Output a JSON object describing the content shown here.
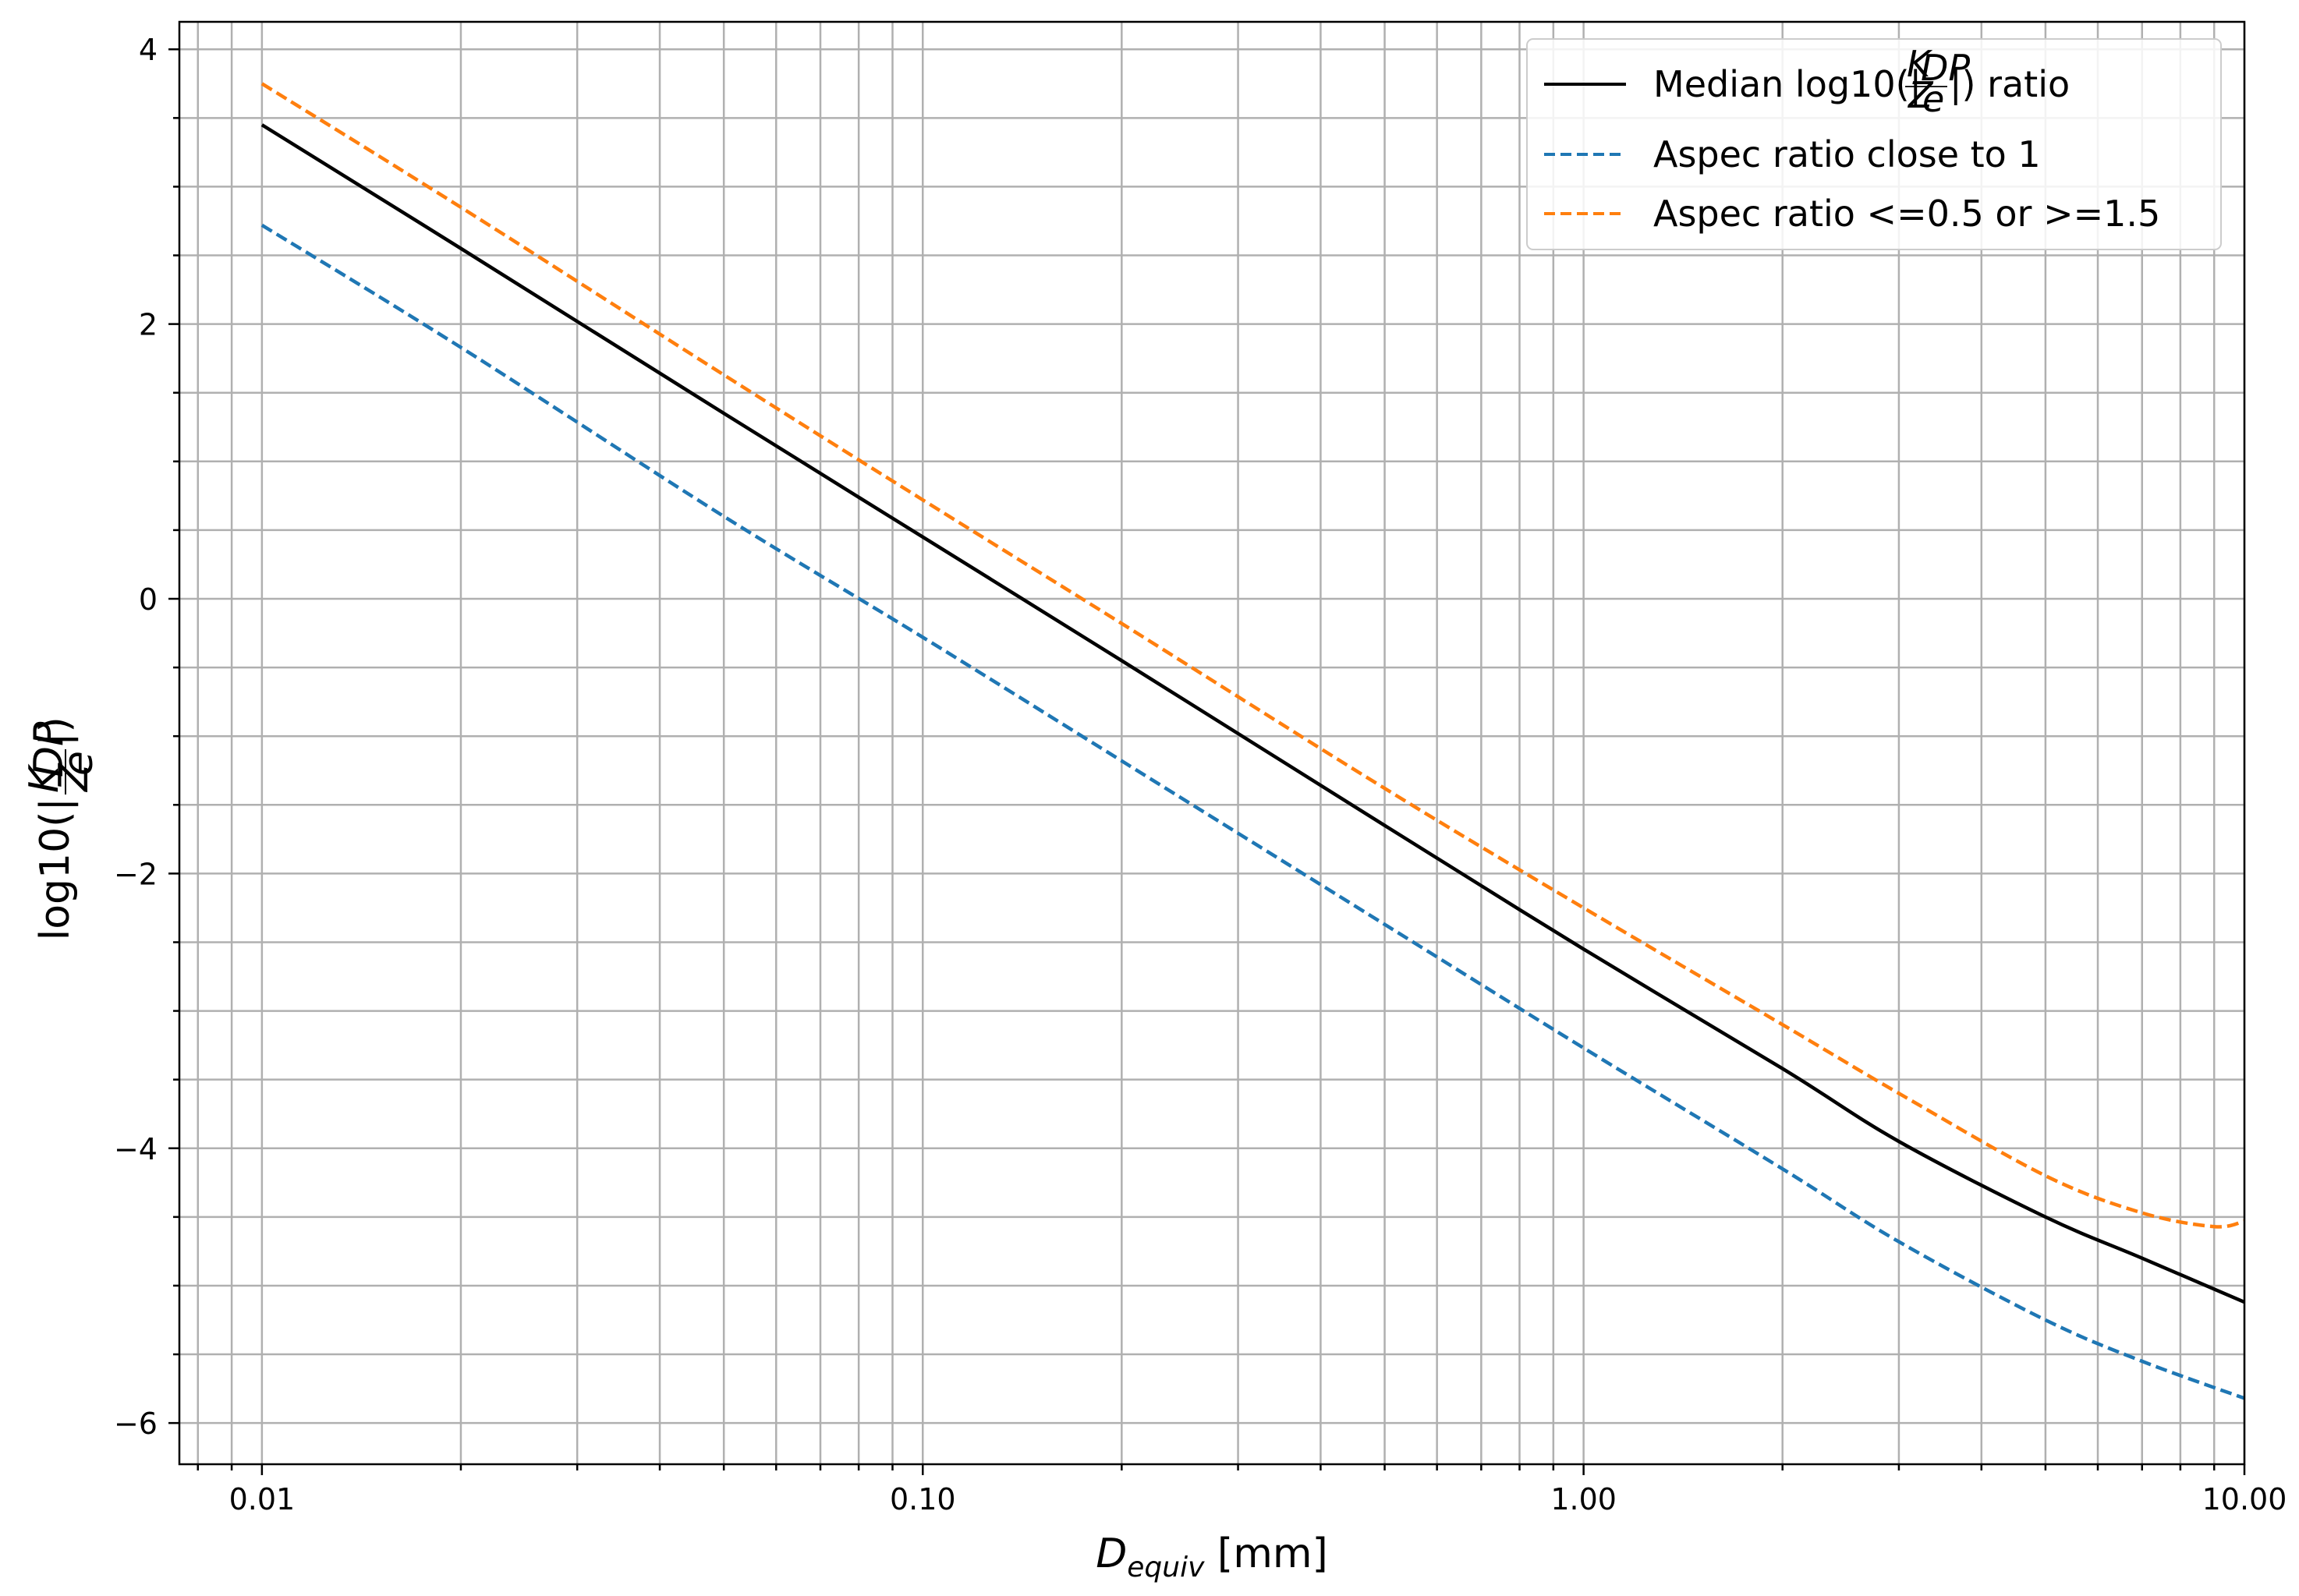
{
  "chart_data": {
    "type": "line",
    "xscale": "log",
    "xlim": [
      0.0075,
      10.0
    ],
    "ylim": [
      -6.3,
      4.2
    ],
    "xticks": [
      0.01,
      0.1,
      1.0,
      10.0
    ],
    "xtick_labels": [
      "0.01",
      "0.10",
      "1.00",
      "10.00"
    ],
    "yticks": [
      4,
      2,
      0,
      -2,
      -4,
      -6
    ],
    "ytick_labels": [
      "4",
      "2",
      "0",
      "−2",
      "−4",
      "−6"
    ],
    "yminor_step": 0.5,
    "grid": true,
    "xlabel": {
      "main": "D",
      "sub": "equiv",
      "unit": " [mm]"
    },
    "ylabel": {
      "prefix": "log10(|",
      "num": "K",
      "num_sub": "DP",
      "den": "Z",
      "den_sub": "e",
      "suffix": "|)"
    },
    "legend_placement": "top-right",
    "series": [
      {
        "name": {
          "prefix": "Median log10(|",
          "num": "K",
          "num_sub": "DP",
          "den": "Z",
          "den_sub": "e",
          "suffix": "|) ratio"
        },
        "color": "#000000",
        "dash": "solid",
        "x": [
          0.01,
          0.02,
          0.05,
          0.1,
          0.2,
          0.5,
          1.0,
          2.0,
          3.0,
          5.0,
          7.0,
          10.0
        ],
        "y": [
          3.45,
          2.55,
          1.35,
          0.45,
          -0.45,
          -1.65,
          -2.55,
          -3.42,
          -3.95,
          -4.5,
          -4.8,
          -5.12
        ]
      },
      {
        "name": "Aspec ratio close to 1",
        "color": "#1f77b4",
        "dash": "dashed",
        "x": [
          0.01,
          0.02,
          0.05,
          0.1,
          0.2,
          0.5,
          1.0,
          2.0,
          3.0,
          5.0,
          7.0,
          10.0
        ],
        "y": [
          2.72,
          1.83,
          0.6,
          -0.28,
          -1.18,
          -2.37,
          -3.27,
          -4.15,
          -4.68,
          -5.25,
          -5.55,
          -5.82
        ]
      },
      {
        "name": "Aspec ratio <=0.5 or >=1.5",
        "color": "#ff7f0e",
        "dash": "dashed",
        "x": [
          0.01,
          0.02,
          0.05,
          0.1,
          0.2,
          0.5,
          1.0,
          2.0,
          3.0,
          5.0,
          7.0,
          9.0,
          10.0
        ],
        "y": [
          3.75,
          2.85,
          1.63,
          0.72,
          -0.18,
          -1.38,
          -2.25,
          -3.1,
          -3.6,
          -4.2,
          -4.47,
          -4.57,
          -4.53
        ]
      }
    ]
  }
}
